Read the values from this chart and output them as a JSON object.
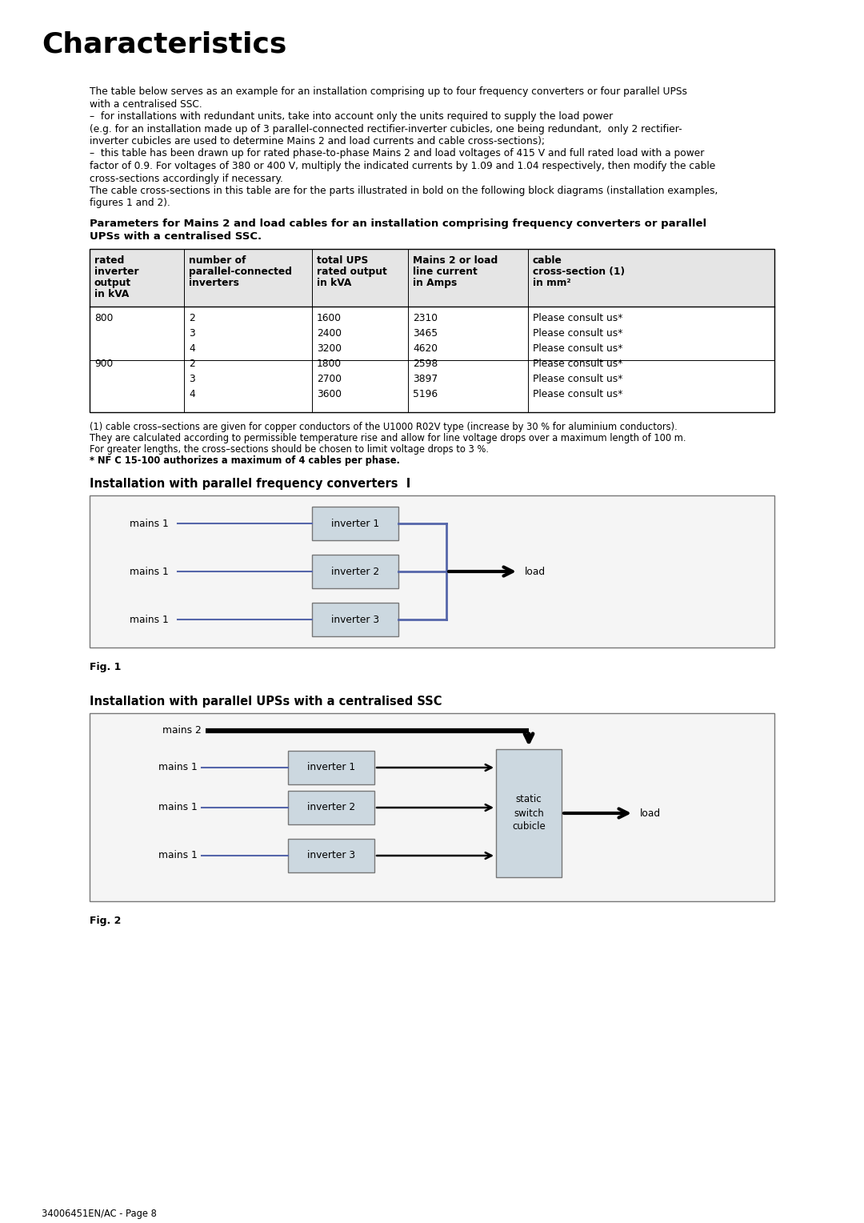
{
  "title": "Characteristics",
  "bg_color": "#ffffff",
  "intro_lines": [
    "The table below serves as an example for an installation comprising up to four frequency converters or four parallel UPSs",
    "with a centralised SSC.",
    "–  for installations with redundant units, take into account only the units required to supply the load power",
    "(e.g. for an installation made up of 3 parallel-connected rectifier-inverter cubicles, one being redundant,  only 2 rectifier-",
    "inverter cubicles are used to determine Mains 2 and load currents and cable cross-sections);",
    "–  this table has been drawn up for rated phase-to-phase Mains 2 and load voltages of 415 V and full rated load with a power",
    "factor of 0.9. For voltages of 380 or 400 V, multiply the indicated currents by 1.09 and 1.04 respectively, then modify the cable",
    "cross-sections accordingly if necessary.",
    "The cable cross-sections in this table are for the parts illustrated in bold on the following block diagrams (installation examples,",
    "figures 1 and 2)."
  ],
  "table_title_line1": "Parameters for Mains 2 and load cables for an installation comprising frequency converters or parallel",
  "table_title_line2": "UPSs with a centralised SSC.",
  "col_headers": [
    [
      "rated",
      "inverter",
      "output",
      "in kVA"
    ],
    [
      "number of",
      "parallel-connected",
      "inverters"
    ],
    [
      "total UPS",
      "rated output",
      "in kVA"
    ],
    [
      "Mains 2 or load",
      "line current",
      "in Amps"
    ],
    [
      "cable",
      "cross-section (1)",
      "in mm²"
    ]
  ],
  "table_data": [
    [
      "800",
      "2",
      "1600",
      "2310",
      "Please consult us*"
    ],
    [
      "",
      "3",
      "2400",
      "3465",
      "Please consult us*"
    ],
    [
      "",
      "4",
      "3200",
      "4620",
      "Please consult us*"
    ],
    [
      "900",
      "2",
      "1800",
      "2598",
      "Please consult us*"
    ],
    [
      "",
      "3",
      "2700",
      "3897",
      "Please consult us*"
    ],
    [
      "",
      "4",
      "3600",
      "5196",
      "Please consult us*"
    ]
  ],
  "footnote_lines": [
    "(1) cable cross–sections are given for copper conductors of the U1000 R02V type (increase by 30 % for aluminium conductors).",
    "They are calculated according to permissible temperature rise and allow for line voltage drops over a maximum length of 100 m.",
    "For greater lengths, the cross–sections should be chosen to limit voltage drops to 3 %.",
    "* NF C 15-100 authorizes a maximum of 4 cables per phase."
  ],
  "fig1_title": "Installation with parallel frequency converters  I",
  "fig2_title": "Installation with parallel UPSs with a centralised SSC",
  "fig1_label": "Fig. 1",
  "fig2_label": "Fig. 2",
  "footer": "34006451EN/AC - Page 8",
  "inv_labels": [
    "inverter 1",
    "inverter 2",
    "inverter 3"
  ]
}
